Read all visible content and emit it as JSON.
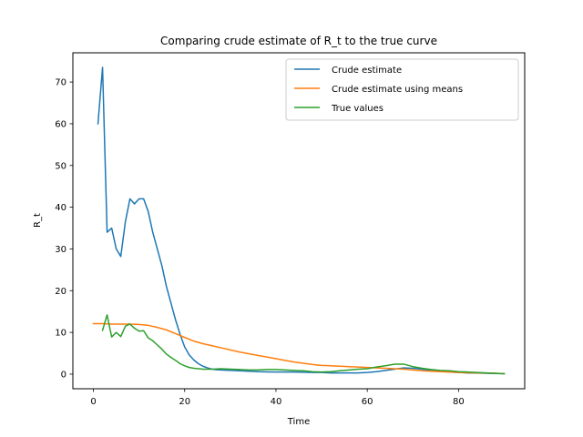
{
  "chart_data": {
    "type": "line",
    "title": "Comparing crude estimate of R_t to the true curve",
    "xlabel": "Time",
    "ylabel": "R_t",
    "xlim": [
      -4.5,
      94.5
    ],
    "ylim": [
      -3.5,
      77.0
    ],
    "xticks": [
      0,
      20,
      40,
      60,
      80
    ],
    "yticks": [
      0,
      10,
      20,
      30,
      40,
      50,
      60,
      70
    ],
    "grid": false,
    "legend_position": "top-right",
    "series": [
      {
        "name": "Crude estimate",
        "color": "#1f77b4",
        "x": [
          1,
          2,
          3,
          4,
          5,
          6,
          7,
          8,
          9,
          10,
          11,
          12,
          13,
          14,
          15,
          16,
          17,
          18,
          19,
          20,
          21,
          22,
          23,
          24,
          25,
          26,
          27,
          28,
          30,
          32,
          34,
          36,
          38,
          40,
          42,
          44,
          46,
          48,
          50,
          52,
          54,
          56,
          58,
          60,
          62,
          64,
          66,
          68,
          70,
          72,
          74,
          76,
          78,
          80,
          82,
          84,
          86,
          88,
          90
        ],
        "y": [
          60,
          73.5,
          34,
          35,
          30,
          28.2,
          36.5,
          42,
          40.8,
          42,
          42,
          39,
          34,
          30,
          26,
          21,
          17,
          13,
          9.5,
          6.5,
          4.6,
          3.4,
          2.5,
          1.9,
          1.5,
          1.2,
          1.05,
          1.0,
          0.9,
          0.8,
          0.7,
          0.6,
          0.55,
          0.5,
          0.5,
          0.5,
          0.45,
          0.4,
          0.4,
          0.3,
          0.3,
          0.3,
          0.3,
          0.4,
          0.6,
          0.9,
          1.2,
          1.5,
          1.4,
          1.2,
          0.9,
          0.7,
          0.5,
          0.4,
          0.3,
          0.25,
          0.2,
          0.15,
          0.1
        ]
      },
      {
        "name": "Crude estimate using means",
        "color": "#ff7f0e",
        "x": [
          0,
          2,
          4,
          6,
          8,
          10,
          12,
          14,
          16,
          18,
          20,
          22,
          24,
          26,
          28,
          30,
          32,
          34,
          36,
          38,
          40,
          42,
          44,
          46,
          48,
          50,
          52,
          54,
          56,
          58,
          60,
          62,
          64,
          66,
          68,
          70,
          72,
          74,
          76,
          78,
          80,
          82,
          84,
          86,
          88,
          90
        ],
        "y": [
          12.1,
          12.1,
          12.0,
          12.0,
          12.0,
          11.9,
          11.7,
          11.2,
          10.6,
          9.7,
          8.8,
          7.9,
          7.3,
          6.8,
          6.3,
          5.8,
          5.3,
          4.9,
          4.5,
          4.1,
          3.7,
          3.3,
          2.9,
          2.6,
          2.3,
          2.1,
          2.0,
          1.9,
          1.8,
          1.7,
          1.6,
          1.5,
          1.4,
          1.3,
          1.2,
          1.0,
          0.8,
          0.7,
          0.6,
          0.5,
          0.4,
          0.35,
          0.3,
          0.25,
          0.2,
          0.1
        ]
      },
      {
        "name": "True values",
        "color": "#2ca02c",
        "x": [
          2,
          3,
          4,
          5,
          6,
          7,
          8,
          9,
          10,
          11,
          12,
          13,
          14,
          15,
          16,
          17,
          18,
          19,
          20,
          21,
          22,
          23,
          24,
          26,
          28,
          30,
          32,
          34,
          36,
          38,
          40,
          42,
          44,
          46,
          48,
          50,
          52,
          54,
          56,
          58,
          60,
          62,
          64,
          66,
          68,
          70,
          72,
          74,
          76,
          78,
          80,
          82,
          84,
          86,
          88,
          90
        ],
        "y": [
          10.5,
          14.2,
          8.9,
          10,
          9,
          11.5,
          12,
          11,
          10.3,
          10.4,
          8.7,
          8,
          7,
          6,
          4.8,
          4,
          3.3,
          2.5,
          2,
          1.6,
          1.4,
          1.3,
          1.2,
          1.2,
          1.3,
          1.2,
          1.1,
          1.0,
          1.0,
          1.1,
          1.1,
          1.0,
          0.9,
          0.8,
          0.6,
          0.5,
          0.6,
          0.8,
          1.0,
          1.2,
          1.3,
          1.7,
          2.0,
          2.4,
          2.4,
          1.8,
          1.4,
          1.1,
          0.9,
          0.8,
          0.6,
          0.5,
          0.4,
          0.3,
          0.2,
          0.1
        ]
      }
    ]
  }
}
